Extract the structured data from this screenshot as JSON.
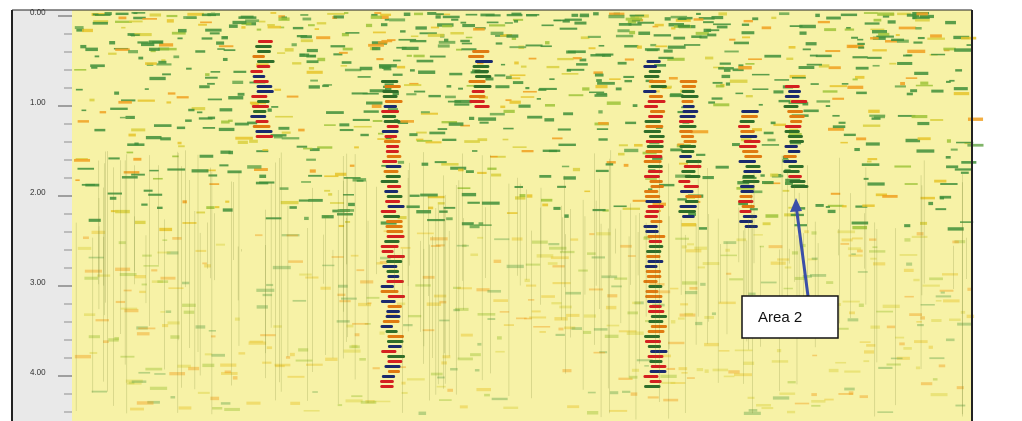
{
  "axis": {
    "ticks": [
      "0.00",
      "1.00",
      "2.00",
      "3.00",
      "4.00"
    ]
  },
  "annotation": {
    "label": "Area 2"
  }
}
